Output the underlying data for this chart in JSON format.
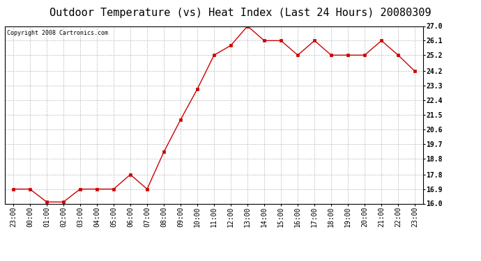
{
  "title": "Outdoor Temperature (vs) Heat Index (Last 24 Hours) 20080309",
  "copyright_text": "Copyright 2008 Cartronics.com",
  "x_labels": [
    "23:00",
    "00:00",
    "01:00",
    "02:00",
    "03:00",
    "04:00",
    "05:00",
    "06:00",
    "07:00",
    "08:00",
    "09:00",
    "10:00",
    "11:00",
    "12:00",
    "13:00",
    "14:00",
    "15:00",
    "16:00",
    "17:00",
    "18:00",
    "19:00",
    "20:00",
    "21:00",
    "22:00",
    "23:00"
  ],
  "y_values": [
    16.9,
    16.9,
    16.1,
    16.1,
    16.9,
    16.9,
    16.9,
    17.8,
    16.9,
    19.2,
    21.2,
    23.1,
    25.2,
    25.8,
    27.0,
    26.1,
    26.1,
    25.2,
    26.1,
    25.2,
    25.2,
    25.2,
    26.1,
    25.2,
    24.2
  ],
  "line_color": "#cc0000",
  "marker": "s",
  "marker_size": 3,
  "marker_color": "#cc0000",
  "background_color": "#ffffff",
  "plot_bg_color": "#ffffff",
  "grid_color": "#bbbbbb",
  "y_min": 16.0,
  "y_max": 27.0,
  "y_ticks": [
    16.0,
    16.9,
    17.8,
    18.8,
    19.7,
    20.6,
    21.5,
    22.4,
    23.3,
    24.2,
    25.2,
    26.1,
    27.0
  ],
  "title_fontsize": 11,
  "tick_fontsize": 7,
  "copyright_fontsize": 6
}
